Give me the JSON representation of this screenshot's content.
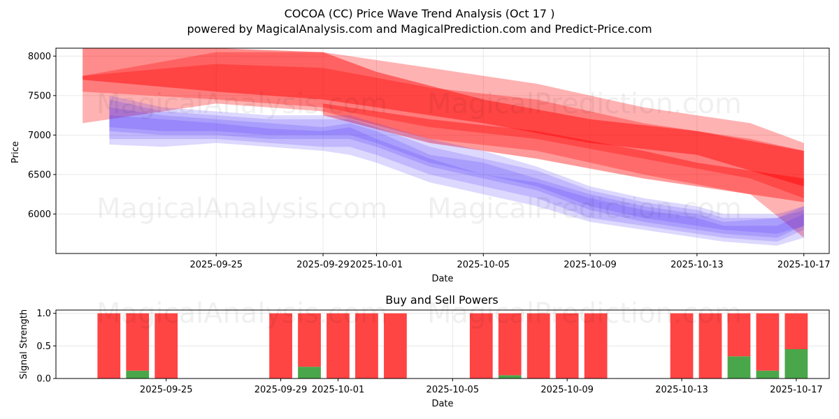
{
  "title_line1": "COCOA (CC) Price Wave Trend Analysis (Oct 17 )",
  "title_line2": "powered by MagicalAnalysis.com and MagicalPrediction.com and Predict-Price.com",
  "watermarks": [
    "MagicalAnalysis.com",
    "MagicalPrediction.com"
  ],
  "colors": {
    "sell": "#ff0000",
    "buy_wave": "#3333ff",
    "sell_bar": "#ff4444",
    "buy_bar": "#4aa64a"
  },
  "chart_data": [
    {
      "type": "area",
      "name": "price-wave-chart",
      "xlabel": "Date",
      "ylabel": "Price",
      "xlim": [
        "2025-09-20",
        "2025-10-17"
      ],
      "ylim": [
        5500,
        8100
      ],
      "yticks": [
        6000,
        6500,
        7000,
        7500,
        8000
      ],
      "xticks": [
        "2025-09-25",
        "2025-09-29",
        "2025-10-01",
        "2025-10-05",
        "2025-10-09",
        "2025-10-13",
        "2025-10-17"
      ],
      "grid": true,
      "red_bands": [
        {
          "opacity": 0.3,
          "points": [
            [
              "2025-09-20",
              7150,
              7750
            ],
            [
              "2025-09-25",
              7400,
              8050
            ],
            [
              "2025-09-29",
              7300,
              8050
            ],
            [
              "2025-10-03",
              6950,
              7850
            ],
            [
              "2025-10-07",
              6800,
              7650
            ],
            [
              "2025-10-11",
              6500,
              7350
            ],
            [
              "2025-10-15",
              6250,
              7150
            ],
            [
              "2025-10-17",
              5700,
              6900
            ]
          ]
        },
        {
          "opacity": 0.3,
          "points": [
            [
              "2025-09-20",
              7550,
              7750
            ],
            [
              "2025-09-25",
              7450,
              7900
            ],
            [
              "2025-09-29",
              7350,
              7850
            ],
            [
              "2025-10-03",
              7100,
              7600
            ],
            [
              "2025-10-07",
              6950,
              7450
            ],
            [
              "2025-10-11",
              6700,
              7150
            ],
            [
              "2025-10-15",
              6450,
              6950
            ],
            [
              "2025-10-17",
              6200,
              6800
            ]
          ]
        },
        {
          "opacity": 0.45,
          "points": [
            [
              "2025-09-20",
              7700,
              8100
            ],
            [
              "2025-09-25",
              7550,
              8100
            ],
            [
              "2025-09-29",
              7450,
              8050
            ],
            [
              "2025-10-01",
              7350,
              7800
            ],
            [
              "2025-10-05",
              7150,
              7450
            ],
            [
              "2025-10-09",
              6900,
              7200
            ],
            [
              "2025-10-13",
              6750,
              7050
            ],
            [
              "2025-10-17",
              6350,
              6800
            ]
          ]
        },
        {
          "opacity": 0.4,
          "points": [
            [
              "2025-09-29",
              7250,
              7400
            ],
            [
              "2025-10-03",
              6900,
              7200
            ],
            [
              "2025-10-07",
              6700,
              7050
            ],
            [
              "2025-10-11",
              6450,
              6800
            ],
            [
              "2025-10-13",
              6350,
              6650
            ],
            [
              "2025-10-17",
              6150,
              6450
            ]
          ]
        }
      ],
      "blue_bands": [
        {
          "opacity": 0.14,
          "points": [
            [
              "2025-09-21",
              6880,
              7250
            ],
            [
              "2025-09-23",
              6850,
              7200
            ],
            [
              "2025-09-25",
              6900,
              7150
            ],
            [
              "2025-09-27",
              6850,
              7080
            ],
            [
              "2025-09-29",
              6800,
              7050
            ],
            [
              "2025-09-30",
              6750,
              7100
            ],
            [
              "2025-10-01",
              6650,
              6950
            ],
            [
              "2025-10-03",
              6400,
              6700
            ],
            [
              "2025-10-05",
              6250,
              6500
            ],
            [
              "2025-10-07",
              6100,
              6400
            ],
            [
              "2025-10-09",
              5900,
              6200
            ],
            [
              "2025-10-11",
              5800,
              6050
            ],
            [
              "2025-10-13",
              5700,
              5950
            ],
            [
              "2025-10-14",
              5650,
              5850
            ],
            [
              "2025-10-16",
              5600,
              5850
            ],
            [
              "2025-10-17",
              5700,
              6000
            ]
          ]
        },
        {
          "opacity": 0.14,
          "points": [
            [
              "2025-09-21",
              6950,
              7350
            ],
            [
              "2025-09-23",
              6950,
              7250
            ],
            [
              "2025-09-25",
              6950,
              7200
            ],
            [
              "2025-09-27",
              6900,
              7150
            ],
            [
              "2025-09-29",
              6850,
              7100
            ],
            [
              "2025-09-30",
              6850,
              7150
            ],
            [
              "2025-10-01",
              6750,
              7050
            ],
            [
              "2025-10-03",
              6500,
              6750
            ],
            [
              "2025-10-05",
              6350,
              6650
            ],
            [
              "2025-10-07",
              6200,
              6450
            ],
            [
              "2025-10-09",
              5950,
              6250
            ],
            [
              "2025-10-11",
              5850,
              6100
            ],
            [
              "2025-10-13",
              5750,
              6000
            ],
            [
              "2025-10-14",
              5700,
              5900
            ],
            [
              "2025-10-16",
              5650,
              5950
            ],
            [
              "2025-10-17",
              5800,
              6100
            ]
          ]
        },
        {
          "opacity": 0.14,
          "points": [
            [
              "2025-09-21",
              7050,
              7450
            ],
            [
              "2025-09-23",
              7000,
              7300
            ],
            [
              "2025-09-25",
              7000,
              7250
            ],
            [
              "2025-09-27",
              6950,
              7200
            ],
            [
              "2025-09-29",
              6950,
              7200
            ],
            [
              "2025-09-30",
              6950,
              7200
            ],
            [
              "2025-10-01",
              6850,
              7100
            ],
            [
              "2025-10-03",
              6600,
              6850
            ],
            [
              "2025-10-05",
              6450,
              6700
            ],
            [
              "2025-10-07",
              6300,
              6550
            ],
            [
              "2025-10-09",
              6050,
              6300
            ],
            [
              "2025-10-11",
              5900,
              6150
            ],
            [
              "2025-10-13",
              5800,
              6050
            ],
            [
              "2025-10-14",
              5750,
              5950
            ],
            [
              "2025-10-16",
              5700,
              5950
            ],
            [
              "2025-10-17",
              5850,
              6050
            ]
          ]
        },
        {
          "opacity": 0.14,
          "points": [
            [
              "2025-09-21",
              7100,
              7500
            ],
            [
              "2025-09-23",
              7050,
              7350
            ],
            [
              "2025-09-25",
              7050,
              7300
            ],
            [
              "2025-09-27",
              7000,
              7250
            ],
            [
              "2025-09-29",
              7000,
              7250
            ],
            [
              "2025-09-30",
              7000,
              7250
            ],
            [
              "2025-10-01",
              6900,
              7150
            ],
            [
              "2025-10-03",
              6650,
              6950
            ],
            [
              "2025-10-05",
              6500,
              6800
            ],
            [
              "2025-10-07",
              6350,
              6600
            ],
            [
              "2025-10-09",
              6100,
              6350
            ],
            [
              "2025-10-11",
              5950,
              6200
            ],
            [
              "2025-10-13",
              5850,
              6100
            ],
            [
              "2025-10-14",
              5800,
              6000
            ],
            [
              "2025-10-16",
              5750,
              6000
            ],
            [
              "2025-10-17",
              5850,
              6100
            ]
          ]
        }
      ]
    },
    {
      "type": "bar",
      "name": "buy-sell-powers-chart",
      "title": "Buy and Sell Powers",
      "xlabel": "Date",
      "ylabel": "Signal Strength",
      "ylim": [
        0,
        1.05
      ],
      "yticks": [
        "0.0",
        "0.5",
        "1.0"
      ],
      "xticks": [
        "2025-09-25",
        "2025-09-29",
        "2025-10-01",
        "2025-10-05",
        "2025-10-09",
        "2025-10-13",
        "2025-10-17"
      ],
      "grid": true,
      "categories": [
        "2025-09-23",
        "2025-09-24",
        "2025-09-25",
        "2025-09-29",
        "2025-09-30",
        "2025-10-01",
        "2025-10-02",
        "2025-10-03",
        "2025-10-06",
        "2025-10-07",
        "2025-10-08",
        "2025-10-09",
        "2025-10-10",
        "2025-10-13",
        "2025-10-14",
        "2025-10-15",
        "2025-10-16",
        "2025-10-17"
      ],
      "series": [
        {
          "name": "Buy",
          "values": [
            0.0,
            0.12,
            0.0,
            0.0,
            0.18,
            0.0,
            0.0,
            0.0,
            0.0,
            0.05,
            0.0,
            0.0,
            0.0,
            0.0,
            0.0,
            0.34,
            0.12,
            0.45
          ]
        },
        {
          "name": "Sell",
          "values": [
            1.0,
            0.88,
            1.0,
            1.0,
            0.82,
            1.0,
            1.0,
            1.0,
            1.0,
            0.95,
            1.0,
            1.0,
            1.0,
            1.0,
            1.0,
            0.66,
            0.88,
            0.55
          ]
        }
      ]
    }
  ]
}
